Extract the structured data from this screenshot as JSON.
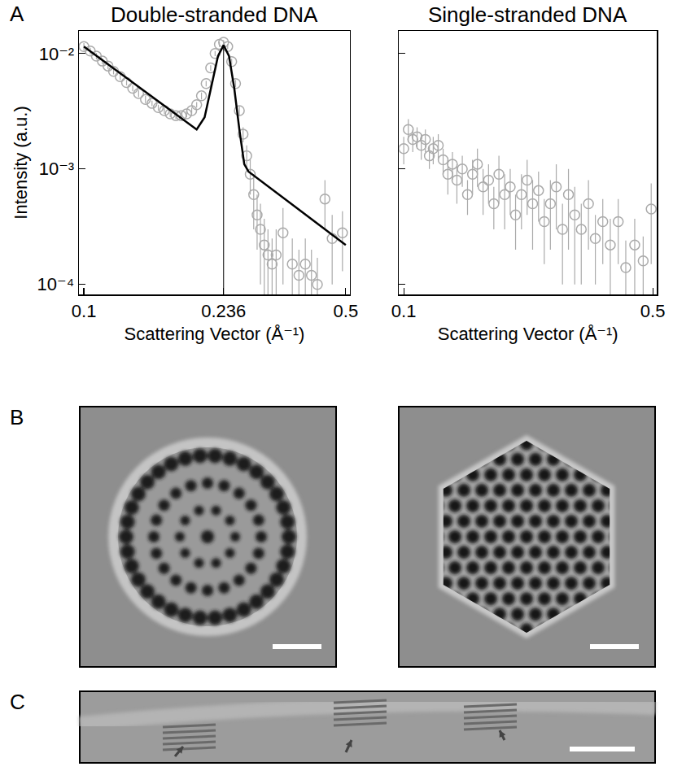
{
  "panel_labels": [
    "A",
    "B",
    "C"
  ],
  "chart_data": [
    {
      "type": "scatter",
      "title": "Double-stranded DNA",
      "x_label": "Scattering Vector (Å⁻¹)",
      "y_label": "Intensity (a.u.)",
      "log": true,
      "grid": false,
      "xlim": [
        0.097,
        0.513
      ],
      "ylim": [
        8.2e-05,
        0.0157
      ],
      "xticks": [
        0.1,
        0.236,
        0.5
      ],
      "yticks": [
        {
          "value": 0.0001,
          "label": "10⁻⁴"
        },
        {
          "value": 0.001,
          "label": "10⁻³"
        },
        {
          "value": 0.01,
          "label": "10⁻²"
        }
      ],
      "reference_x": 0.236,
      "series": [
        {
          "type": "scatter",
          "color": "#aaaaaa",
          "marker": "circle-open",
          "x": [
            0.1,
            0.104,
            0.108,
            0.112,
            0.116,
            0.12,
            0.125,
            0.13,
            0.135,
            0.14,
            0.146,
            0.152,
            0.158,
            0.164,
            0.17,
            0.176,
            0.182,
            0.188,
            0.194,
            0.2,
            0.206,
            0.212,
            0.218,
            0.224,
            0.23,
            0.236,
            0.242,
            0.248,
            0.254,
            0.26,
            0.266,
            0.272,
            0.278,
            0.284,
            0.29,
            0.296,
            0.303,
            0.31,
            0.318,
            0.326,
            0.34,
            0.36,
            0.375,
            0.39,
            0.405,
            0.42,
            0.44,
            0.46,
            0.49
          ],
          "values": [
            0.0115,
            0.0105,
            0.0095,
            0.0086,
            0.0078,
            0.007,
            0.0063,
            0.0056,
            0.005,
            0.0045,
            0.004,
            0.0037,
            0.0034,
            0.0032,
            0.003,
            0.0029,
            0.0029,
            0.003,
            0.0032,
            0.0036,
            0.0043,
            0.0055,
            0.0075,
            0.01,
            0.012,
            0.0125,
            0.0115,
            0.0085,
            0.0055,
            0.0032,
            0.002,
            0.0013,
            0.0009,
            0.0006,
            0.0004,
            0.0003,
            0.00022,
            0.00018,
            0.00015,
            0.00018,
            0.00028,
            0.00015,
            0.00012,
            0.00015,
            0.00012,
            0.0001,
            0.00055,
            0.00025,
            0.00028
          ],
          "errors": [
            0.0008,
            0.0007,
            0.0006,
            0.0005,
            0.0005,
            0.0004,
            0.0004,
            0.0003,
            0.0003,
            0.0003,
            0.0003,
            0.0002,
            0.0002,
            0.0002,
            0.0002,
            0.0002,
            0.0002,
            0.0002,
            0.0002,
            0.0002,
            0.0003,
            0.0003,
            0.0004,
            0.0005,
            0.0006,
            0.0006,
            0.0006,
            0.0005,
            0.0004,
            0.0003,
            0.0003,
            0.0003,
            0.0003,
            0.0003,
            0.0002,
            0.0002,
            0.00015,
            0.00012,
            0.0001,
            0.00012,
            0.00018,
            0.0001,
            8e-05,
            0.0001,
            8e-05,
            7e-05,
            0.00025,
            0.00015,
            0.00015
          ]
        },
        {
          "type": "line",
          "color": "#000000",
          "line_style": "solid",
          "x": [
            0.1,
            0.2,
            0.21,
            0.22,
            0.228,
            0.236,
            0.244,
            0.252,
            0.26,
            0.268,
            0.275,
            0.5
          ],
          "values": [
            0.0115,
            0.0022,
            0.0028,
            0.0055,
            0.0095,
            0.0118,
            0.0095,
            0.005,
            0.0022,
            0.0011,
            0.00095,
            0.00022
          ]
        }
      ]
    },
    {
      "type": "scatter",
      "title": "Single-stranded DNA",
      "x_label": "Scattering Vector (Å⁻¹)",
      "log": true,
      "grid": false,
      "tick_labels": "x",
      "xlim": [
        0.097,
        0.513
      ],
      "ylim": [
        8.2e-05,
        0.0157
      ],
      "xticks": [
        0.1,
        0.5
      ],
      "yticks": [
        {
          "value": 0.0001,
          "label": "10⁻⁴"
        },
        {
          "value": 0.001,
          "label": "10⁻³"
        },
        {
          "value": 0.01,
          "label": "10⁻²"
        }
      ],
      "series": [
        {
          "type": "scatter",
          "color": "#aaaaaa",
          "marker": "circle-open",
          "x": [
            0.1,
            0.103,
            0.106,
            0.109,
            0.112,
            0.115,
            0.118,
            0.121,
            0.125,
            0.129,
            0.133,
            0.137,
            0.141,
            0.146,
            0.151,
            0.156,
            0.161,
            0.167,
            0.173,
            0.179,
            0.185,
            0.192,
            0.199,
            0.206,
            0.214,
            0.222,
            0.23,
            0.239,
            0.248,
            0.258,
            0.268,
            0.279,
            0.29,
            0.302,
            0.315,
            0.33,
            0.345,
            0.362,
            0.38,
            0.4,
            0.42,
            0.445,
            0.47,
            0.495
          ],
          "values": [
            0.0015,
            0.0022,
            0.0018,
            0.0019,
            0.0016,
            0.0018,
            0.0013,
            0.0015,
            0.0016,
            0.0012,
            0.0009,
            0.0011,
            0.0008,
            0.001,
            0.0006,
            0.0009,
            0.0011,
            0.0007,
            0.0008,
            0.0005,
            0.0009,
            0.0006,
            0.0007,
            0.0004,
            0.0006,
            0.0008,
            0.0005,
            0.00065,
            0.00035,
            0.0005,
            0.0007,
            0.0003,
            0.0006,
            0.0004,
            0.0003,
            0.0005,
            0.00025,
            0.00035,
            0.00022,
            0.00035,
            0.00014,
            0.00022,
            0.00016,
            0.00045
          ],
          "errors": [
            0.0004,
            0.0005,
            0.0004,
            0.0004,
            0.0004,
            0.0004,
            0.0003,
            0.0004,
            0.0004,
            0.0003,
            0.0003,
            0.0003,
            0.0003,
            0.0003,
            0.0002,
            0.0003,
            0.0004,
            0.0003,
            0.0003,
            0.0002,
            0.0004,
            0.0003,
            0.0003,
            0.0002,
            0.0003,
            0.0004,
            0.0003,
            0.0003,
            0.0002,
            0.0003,
            0.0004,
            0.0002,
            0.0004,
            0.0003,
            0.0002,
            0.0003,
            0.00015,
            0.0002,
            0.00015,
            0.0002,
            0.0001,
            0.00015,
            0.0001,
            0.0003
          ]
        }
      ]
    }
  ]
}
